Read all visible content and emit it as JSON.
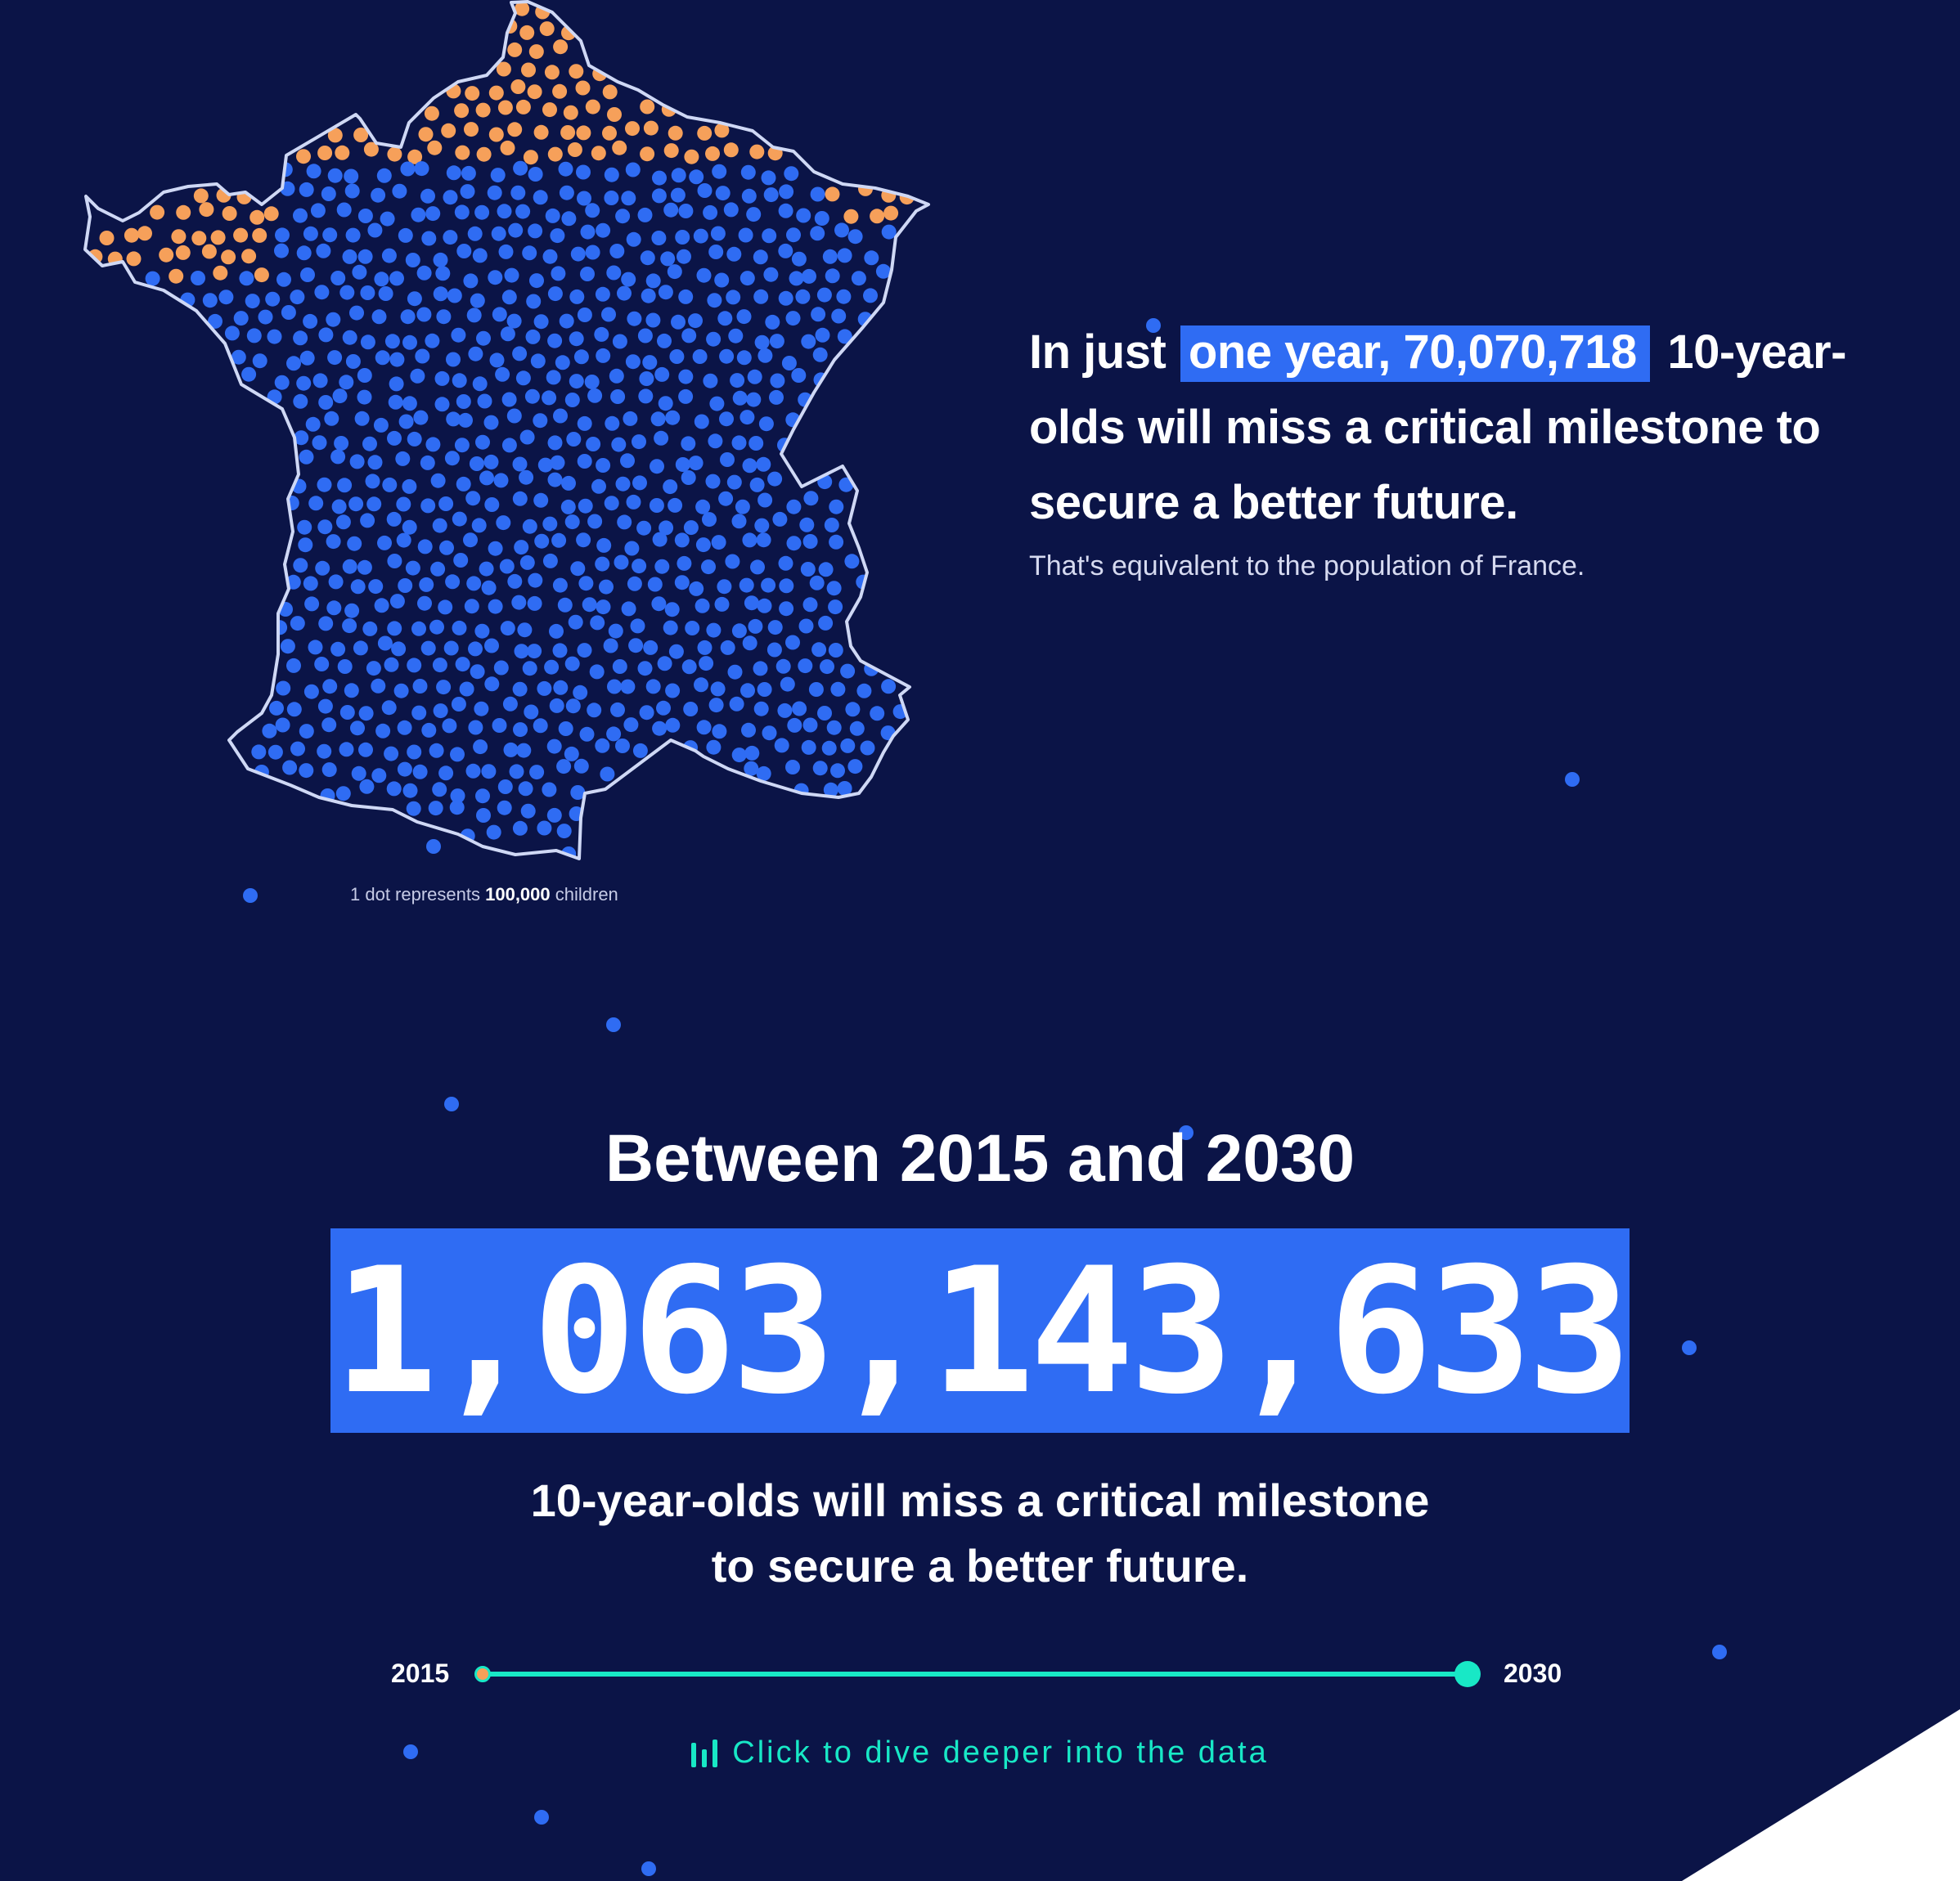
{
  "map": {
    "legend_prefix": "1 dot represents ",
    "legend_value": "100,000",
    "legend_suffix": " children",
    "missed_color": "#f6a05a",
    "population_color": "#2f6cf3",
    "outline_color": "#cfd8f5"
  },
  "headline": {
    "lead": "In just",
    "highlight": "one year, 70,070,718",
    "rest": " 10-year-olds will miss a critical milestone to secure a better future.",
    "subline": "That's equivalent to the population of France."
  },
  "cumulative": {
    "period_title": "Between 2015 and 2030",
    "total": "1,063,143,633",
    "description_line1": "10-year-olds will miss a critical milestone",
    "description_line2": "to secure a better future."
  },
  "timeline": {
    "start_label": "2015",
    "end_label": "2030",
    "progress": 1.0
  },
  "cta": {
    "label": "Click to dive deeper into the data",
    "icon": "bar-chart-icon"
  },
  "colors": {
    "background": "#0b1447",
    "accent_blue": "#2f6cf3",
    "accent_teal": "#18e8c6",
    "accent_orange": "#f6a05a"
  }
}
